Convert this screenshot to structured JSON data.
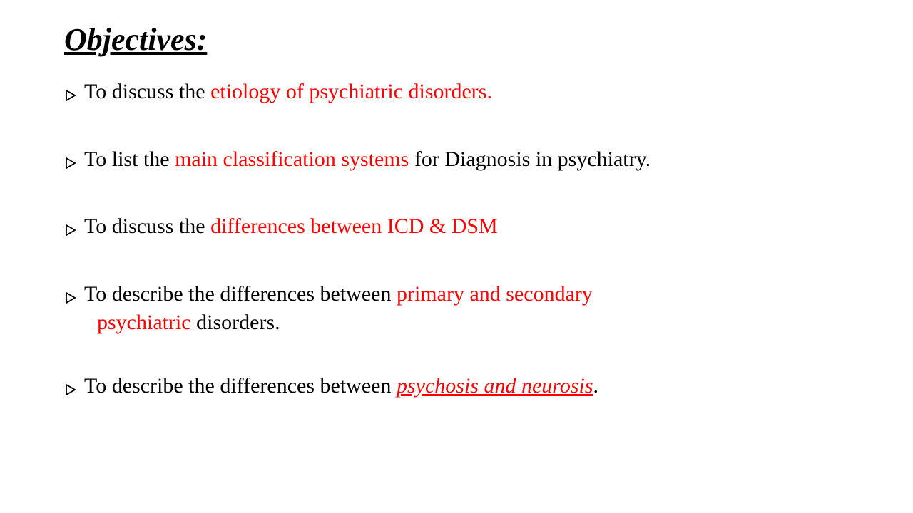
{
  "title": "Objectives:",
  "bullets": [
    {
      "segments": [
        {
          "text": "To discuss the ",
          "style": "normal"
        },
        {
          "text": "etiology of psychiatric disorders.",
          "style": "red"
        }
      ]
    },
    {
      "segments": [
        {
          "text": "To list the ",
          "style": "normal"
        },
        {
          "text": "main classification systems ",
          "style": "red"
        },
        {
          "text": "for Diagnosis in psychiatry.",
          "style": "normal"
        }
      ]
    },
    {
      "segments": [
        {
          "text": "To discuss the ",
          "style": "normal"
        },
        {
          "text": "differences between ICD & DSM",
          "style": "red"
        }
      ]
    },
    {
      "segments": [
        {
          "text": "To describe the differences between ",
          "style": "normal"
        },
        {
          "text": "primary and secondary",
          "style": "red"
        },
        {
          "text": "psychiatric ",
          "style": "red",
          "newline": true
        },
        {
          "text": "disorders.",
          "style": "normal"
        }
      ]
    },
    {
      "segments": [
        {
          "text": "To describe the differences between ",
          "style": "normal"
        },
        {
          "text": "psychosis and neurosis",
          "style": "red-underline"
        },
        {
          "text": ".",
          "style": "normal"
        }
      ]
    }
  ],
  "colors": {
    "text": "#000000",
    "highlight": "#ff0000",
    "bullet": "#000000",
    "background": "#ffffff"
  },
  "typography": {
    "title_fontsize": 44,
    "body_fontsize": 30,
    "font_family": "Times New Roman"
  }
}
